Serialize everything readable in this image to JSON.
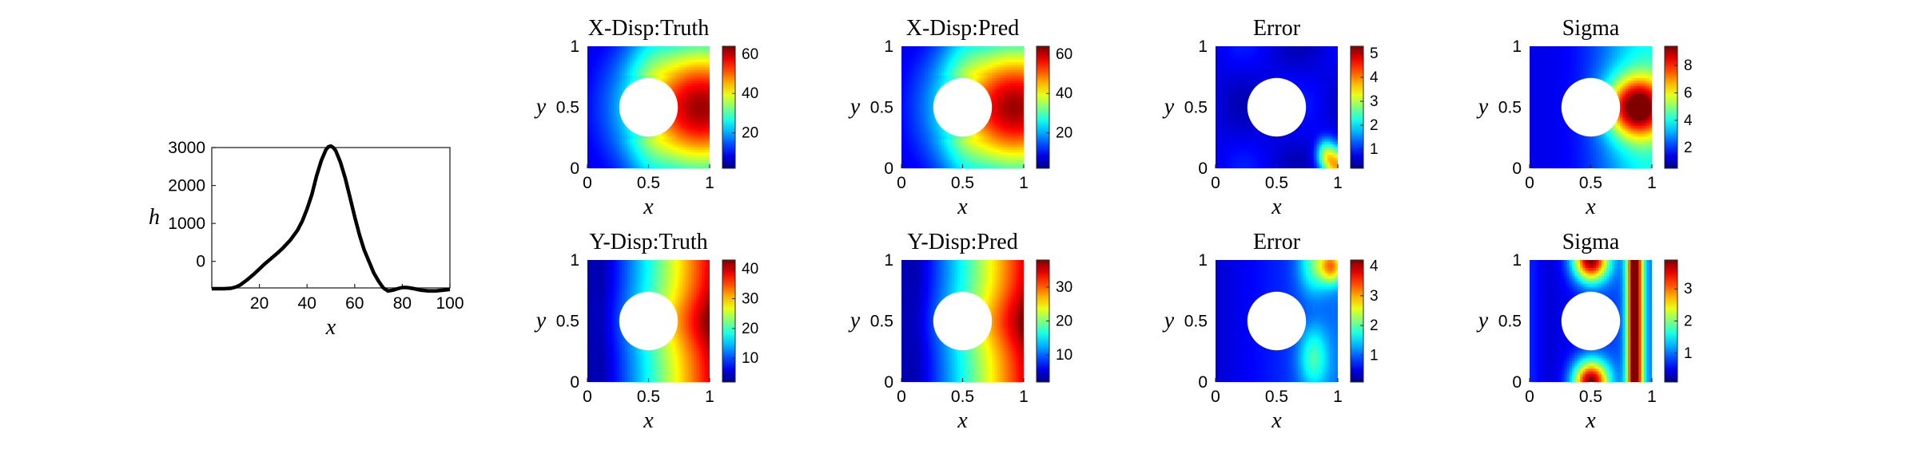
{
  "chart_data": [
    {
      "type": "line",
      "xlabel": "x",
      "ylabel": "h",
      "xlim": [
        0,
        100
      ],
      "ylim": [
        -700,
        3000
      ],
      "x_ticks": [
        "20",
        "40",
        "60",
        "80",
        "100"
      ],
      "y_ticks": [
        "0",
        "1000",
        "2000",
        "3000"
      ],
      "series": [
        {
          "x": [
            0,
            5,
            8,
            10,
            12,
            15,
            18,
            20,
            22,
            25,
            28,
            30,
            33,
            36,
            38,
            40,
            42,
            44,
            46,
            48,
            49,
            50,
            51,
            52,
            54,
            56,
            58,
            60,
            62,
            64,
            66,
            68,
            70,
            72,
            74,
            76,
            78,
            80,
            82,
            85,
            88,
            91,
            94,
            97,
            100
          ],
          "y": [
            -720,
            -720,
            -710,
            -680,
            -620,
            -480,
            -320,
            -200,
            -80,
            80,
            240,
            360,
            560,
            820,
            1060,
            1380,
            1760,
            2250,
            2660,
            2950,
            3020,
            3040,
            3000,
            2920,
            2620,
            2200,
            1700,
            1180,
            700,
            300,
            0,
            -300,
            -520,
            -700,
            -780,
            -760,
            -720,
            -690,
            -690,
            -720,
            -760,
            -780,
            -780,
            -760,
            -740
          ]
        }
      ],
      "color": "#000000"
    },
    {
      "type": "heatmap",
      "title": "X-Disp:Truth",
      "xlabel": "x",
      "ylabel": "y",
      "x_ticks": [
        "0",
        "0.5",
        "1"
      ],
      "y_ticks": [
        "0",
        "0.5",
        "1"
      ],
      "colorbar_ticks": [
        "20",
        "40",
        "60"
      ],
      "colorbar_range": [
        2,
        64
      ],
      "colormap": "jet",
      "field": "xdisp"
    },
    {
      "type": "heatmap",
      "title": "X-Disp:Pred",
      "xlabel": "x",
      "ylabel": "y",
      "x_ticks": [
        "0",
        "0.5",
        "1"
      ],
      "y_ticks": [
        "0",
        "0.5",
        "1"
      ],
      "colorbar_ticks": [
        "20",
        "40",
        "60"
      ],
      "colorbar_range": [
        2,
        64
      ],
      "colormap": "jet",
      "field": "xdisp"
    },
    {
      "type": "heatmap",
      "title": "Error",
      "xlabel": "x",
      "ylabel": "y",
      "x_ticks": [
        "0",
        "0.5",
        "1"
      ],
      "y_ticks": [
        "0",
        "0.5",
        "1"
      ],
      "colorbar_ticks": [
        "1",
        "2",
        "3",
        "4",
        "5"
      ],
      "colorbar_range": [
        0.2,
        5.3
      ],
      "colormap": "jet",
      "field": "xerr"
    },
    {
      "type": "heatmap",
      "title": "Sigma",
      "xlabel": "x",
      "ylabel": "y",
      "x_ticks": [
        "0",
        "0.5",
        "1"
      ],
      "y_ticks": [
        "0",
        "0.5",
        "1"
      ],
      "colorbar_ticks": [
        "2",
        "4",
        "6",
        "8"
      ],
      "colorbar_range": [
        0.5,
        9.4
      ],
      "colormap": "jet",
      "field": "xsig"
    },
    {
      "type": "heatmap",
      "title": "Y-Disp:Truth",
      "xlabel": "x",
      "ylabel": "y",
      "x_ticks": [
        "0",
        "0.5",
        "1"
      ],
      "y_ticks": [
        "0",
        "0.5",
        "1"
      ],
      "colorbar_ticks": [
        "10",
        "20",
        "30",
        "40"
      ],
      "colorbar_range": [
        2,
        43
      ],
      "colormap": "jet",
      "field": "ydisp"
    },
    {
      "type": "heatmap",
      "title": "Y-Disp:Pred",
      "xlabel": "x",
      "ylabel": "y",
      "x_ticks": [
        "0",
        "0.5",
        "1"
      ],
      "y_ticks": [
        "0",
        "0.5",
        "1"
      ],
      "colorbar_ticks": [
        "10",
        "20",
        "30"
      ],
      "colorbar_range": [
        2,
        38
      ],
      "colormap": "jet",
      "field": "ydisp"
    },
    {
      "type": "heatmap",
      "title": "Error",
      "xlabel": "x",
      "ylabel": "y",
      "x_ticks": [
        "0",
        "0.5",
        "1"
      ],
      "y_ticks": [
        "0",
        "0.5",
        "1"
      ],
      "colorbar_ticks": [
        "1",
        "2",
        "3",
        "4"
      ],
      "colorbar_range": [
        0.1,
        4.2
      ],
      "colormap": "jet",
      "field": "yerr"
    },
    {
      "type": "heatmap",
      "title": "Sigma",
      "xlabel": "x",
      "ylabel": "y",
      "x_ticks": [
        "0",
        "0.5",
        "1"
      ],
      "y_ticks": [
        "0",
        "0.5",
        "1"
      ],
      "colorbar_ticks": [
        "1",
        "2",
        "3"
      ],
      "colorbar_range": [
        0.1,
        3.9
      ],
      "colormap": "jet",
      "field": "ysig"
    }
  ]
}
